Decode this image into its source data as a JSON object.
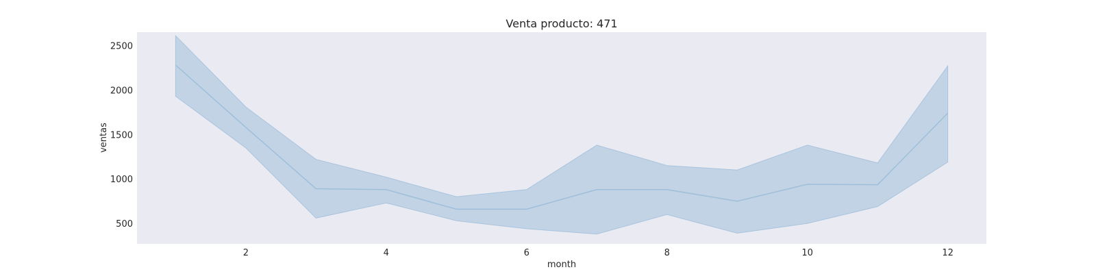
{
  "chart_data": {
    "type": "line",
    "title": "Venta producto: 471",
    "xlabel": "month",
    "ylabel": "ventas",
    "xlim": [
      0.45,
      12.55
    ],
    "ylim": [
      270,
      2650
    ],
    "xticks": [
      2,
      4,
      6,
      8,
      10,
      12
    ],
    "yticks": [
      500,
      1000,
      1500,
      2000,
      2500
    ],
    "grid": false,
    "colors": {
      "background": "#eaeaf2",
      "line": "#9ebfda",
      "band": "#c2d3e5",
      "band_edge": "#a9c4de"
    },
    "series": [
      {
        "x": [
          1,
          2,
          3,
          4,
          5,
          6,
          7,
          8,
          9,
          10,
          11,
          12
        ],
        "values": [
          2280,
          1580,
          890,
          880,
          660,
          660,
          880,
          880,
          750,
          940,
          935,
          1740
        ],
        "lower": [
          1930,
          1350,
          560,
          730,
          530,
          440,
          380,
          600,
          390,
          500,
          690,
          1190
        ],
        "upper": [
          2610,
          1810,
          1220,
          1020,
          800,
          880,
          1380,
          1150,
          1100,
          1380,
          1180,
          2270
        ]
      }
    ]
  }
}
